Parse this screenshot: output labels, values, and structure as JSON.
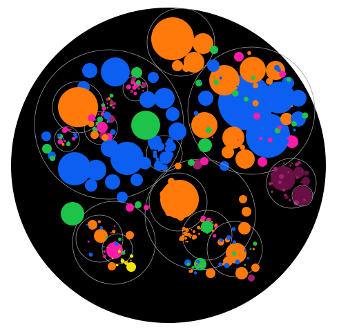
{
  "title": "",
  "background_color": "#000000",
  "outline_color": "#9a9a9a",
  "palette": {
    "blue": "#0d5ff2",
    "orange": "#ff7a0a",
    "green": "#1ec44a",
    "magenta": "#ff1aa8",
    "purple": "#a0206e",
    "maroon": "#6a0f44",
    "yellow": "#f2e600",
    "gray": "#8a8a8a"
  },
  "chart_data": {
    "type": "circle-packing",
    "hierarchy_depth_shown": 4,
    "groups": [
      {
        "name": "",
        "dominant_colors": [
          "blue",
          "orange",
          "green",
          "magenta"
        ]
      },
      {
        "name": "",
        "dominant_colors": [
          "orange",
          "blue",
          "magenta",
          "green"
        ]
      },
      {
        "name": "",
        "dominant_colors": [
          "orange"
        ]
      },
      {
        "name": "",
        "dominant_colors": [
          "orange",
          "green",
          "magenta"
        ]
      },
      {
        "name": "",
        "dominant_colors": [
          "maroon",
          "purple"
        ]
      },
      {
        "name": "",
        "dominant_colors": [
          "green",
          "orange",
          "magenta",
          "yellow"
        ]
      }
    ]
  }
}
